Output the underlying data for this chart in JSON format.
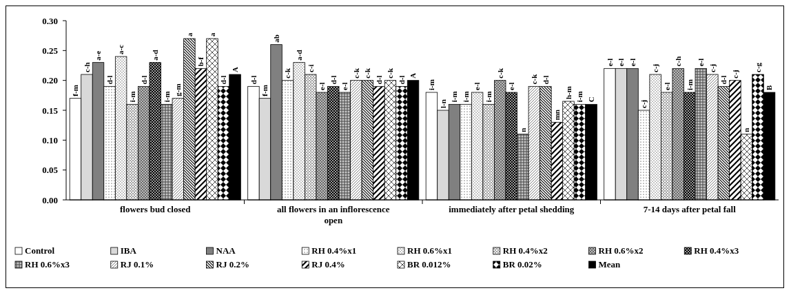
{
  "chart_data": {
    "type": "bar",
    "categories": [
      "flowers bud closed",
      "all flowers in an inflorescence open",
      "immediately after petal shedding",
      "7-14 days after petal fall"
    ],
    "ylim": [
      0,
      0.3
    ],
    "yticks": [
      {
        "value": 0,
        "label": "0.00"
      },
      {
        "value": 0.05,
        "label": "0.05"
      },
      {
        "value": 0.1,
        "label": "0.10"
      },
      {
        "value": 0.15,
        "label": "0.15"
      },
      {
        "value": 0.2,
        "label": "0.20"
      },
      {
        "value": 0.25,
        "label": "0.25"
      },
      {
        "value": 0.3,
        "label": "0.30"
      }
    ],
    "grid": false,
    "legend": "bottom",
    "series": [
      {
        "name": "Control",
        "color": "#ffffff",
        "values": [
          0.17,
          0.19,
          0.18,
          0.22
        ],
        "value_labels": [
          "f-m",
          "d-l",
          "i-m",
          "e-l"
        ]
      },
      {
        "name": "IBA",
        "color": "#d9d9d9",
        "values": [
          0.21,
          0.17,
          0.15,
          0.22
        ],
        "value_labels": [
          "c-h",
          "f-m",
          "l-n",
          "e-l"
        ]
      },
      {
        "name": "NAA",
        "color": "#808080",
        "values": [
          0.23,
          0.26,
          0.16,
          0.22
        ],
        "value_labels": [
          "a-e",
          "ab",
          "i-m",
          "e-l"
        ]
      },
      {
        "name": "RH 0.4%x1",
        "color": "#000000",
        "values": [
          0.19,
          0.2,
          0.16,
          0.15
        ],
        "value_labels": [
          "d-l",
          "c-k",
          "i-m",
          "c-j"
        ]
      },
      {
        "name": "RH 0.6%x1",
        "color": "#000000",
        "values": [
          0.24,
          0.23,
          0.18,
          0.21
        ],
        "value_labels": [
          "a-c",
          "a-d",
          "e-l",
          "c-j"
        ]
      },
      {
        "name": "RH 0.4%x2",
        "color": "#000000",
        "values": [
          0.16,
          0.21,
          0.16,
          0.18
        ],
        "value_labels": [
          "i-m",
          "c-i",
          "i-m",
          "e-l"
        ]
      },
      {
        "name": "RH 0.6%x2",
        "color": "#000000",
        "values": [
          0.19,
          0.18,
          0.2,
          0.22
        ],
        "value_labels": [
          "d-l",
          "e-l",
          "c-k",
          "c-h"
        ]
      },
      {
        "name": "RH 0.4%x3",
        "color": "#000000",
        "values": [
          0.23,
          0.19,
          0.18,
          0.18
        ],
        "value_labels": [
          "a-d",
          "d-l",
          "e-l",
          "i-m"
        ]
      },
      {
        "name": "RH 0.6%x3",
        "color": "#000000",
        "values": [
          0.16,
          0.18,
          0.11,
          0.22
        ],
        "value_labels": [
          "i-m",
          "e-l",
          "n",
          "e-l"
        ]
      },
      {
        "name": "RJ 0.1%",
        "color": "#000000",
        "values": [
          0.17,
          0.2,
          0.19,
          0.21
        ],
        "value_labels": [
          "g-m",
          "c-k",
          "c-k",
          "c-j"
        ]
      },
      {
        "name": "RJ 0.2%",
        "color": "#000000",
        "values": [
          0.27,
          0.2,
          0.19,
          0.19
        ],
        "value_labels": [
          "a",
          "c-k",
          "d-l",
          "d-l"
        ]
      },
      {
        "name": "RJ 0.4%",
        "color": "#000000",
        "values": [
          0.22,
          0.19,
          0.13,
          0.2
        ],
        "value_labels": [
          "b-f",
          "d-l",
          "mn",
          "c-j"
        ]
      },
      {
        "name": "BR 0.012%",
        "color": "#000000",
        "values": [
          0.27,
          0.2,
          0.165,
          0.11
        ],
        "value_labels": [
          "a",
          "c-k",
          "h-m",
          "n"
        ]
      },
      {
        "name": "BR 0.02%",
        "color": "#000000",
        "values": [
          0.19,
          0.19,
          0.16,
          0.21
        ],
        "value_labels": [
          "d-l",
          "d-l",
          "i-m",
          "c-g"
        ]
      },
      {
        "name": "Mean",
        "color": "#000000",
        "values": [
          0.21,
          0.2,
          0.16,
          0.18
        ],
        "value_labels": [
          "A",
          "A",
          "C",
          "B"
        ]
      }
    ]
  }
}
